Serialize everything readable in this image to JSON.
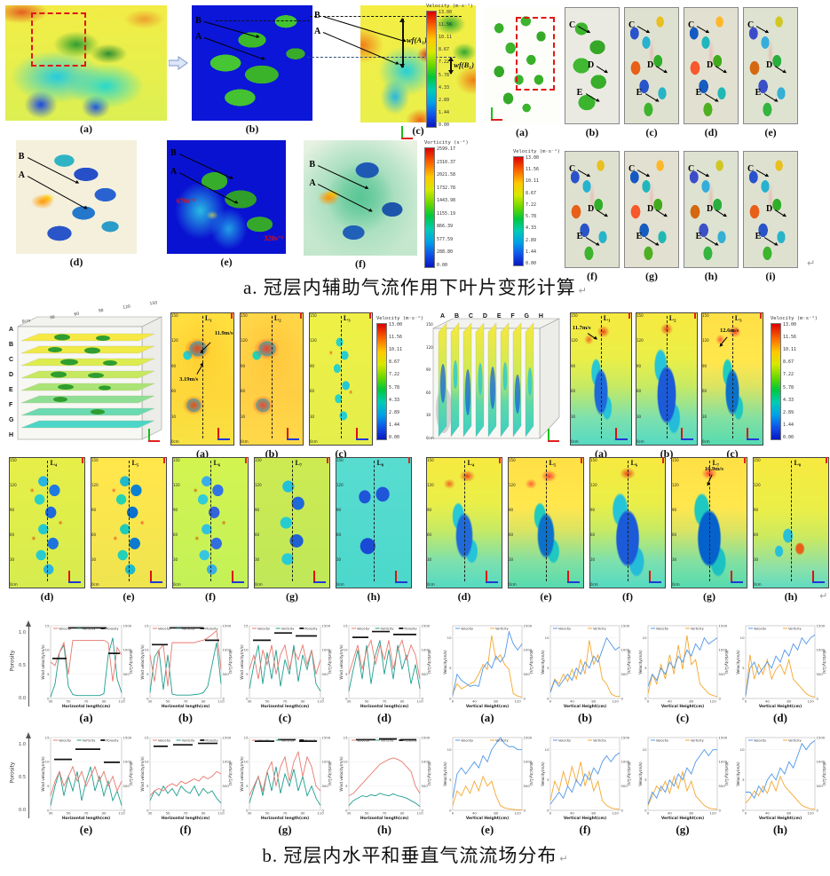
{
  "page": {
    "background": "#ffffff"
  },
  "return_mark": "↵",
  "colors": {
    "leaf_green": "#3cb42c",
    "roi_dashed": "#e01616",
    "velocity_line_left": "#e8796e",
    "vorticity_line_left": "#1f9e8e",
    "porosity_line": "#111111",
    "velocity_line_right": "#4f97e8",
    "vorticity_line_right": "#f5a72e"
  },
  "colorbars": {
    "velocity": {
      "title": "Velocity (m·s⁻¹)",
      "ticks": [
        "13.00",
        "11.56",
        "10.11",
        "8.67",
        "7.22",
        "5.78",
        "4.33",
        "2.89",
        "1.44",
        "0.00"
      ]
    },
    "vorticity": {
      "title": "Vorticity (s⁻¹)",
      "ticks": [
        "2599.17",
        "2310.37",
        "2021.58",
        "1732.78",
        "1443.98",
        "1155.19",
        "866.39",
        "577.59",
        "288.80",
        "0.00"
      ]
    }
  },
  "section_a": {
    "caption": "a. 冠层内辅助气流作用下叶片变形计算",
    "left": {
      "point_labels": [
        "B",
        "A"
      ],
      "panels": [
        {
          "label": "(a)"
        },
        {
          "label": "(b)"
        },
        {
          "label": "(c)"
        },
        {
          "label": "(d)"
        },
        {
          "label": "(e)"
        },
        {
          "label": "(f)"
        }
      ],
      "deform_annotations": [
        "wf(A₁)",
        "wf(B₁)"
      ],
      "vorticity_annotations": [
        "670s⁻¹",
        "320s⁻¹"
      ]
    },
    "right": {
      "point_labels": [
        "C",
        "D",
        "E"
      ],
      "row1": [
        {
          "label": "(a)"
        },
        {
          "label": "(b)"
        },
        {
          "label": "(c)"
        },
        {
          "label": "(d)"
        },
        {
          "label": "(e)"
        }
      ],
      "row2": [
        {
          "label": "(f)"
        },
        {
          "label": "(g)"
        },
        {
          "label": "(h)"
        },
        {
          "label": "(i)"
        }
      ]
    }
  },
  "section_b": {
    "yticks": [
      "150",
      "120",
      "90",
      "60",
      "30",
      "0cm"
    ],
    "left": {
      "box_letters": [
        "A",
        "B",
        "C",
        "D",
        "E",
        "F",
        "G",
        "H"
      ],
      "box_axis": [
        "0cm",
        "30",
        "60",
        "90",
        "120",
        "150"
      ],
      "panels": [
        {
          "label": "(a)",
          "slice": "L₁",
          "annotations": [
            "11.9m/s",
            "3.19m/s"
          ]
        },
        {
          "label": "(b)",
          "slice": "L₂"
        },
        {
          "label": "(c)",
          "slice": "L₃"
        },
        {
          "label": "(d)",
          "slice": "L₄"
        },
        {
          "label": "(e)",
          "slice": "L₅"
        },
        {
          "label": "(f)",
          "slice": "L₆"
        },
        {
          "label": "(g)",
          "slice": "L₇"
        },
        {
          "label": "(h)",
          "slice": "L₈"
        }
      ]
    },
    "right": {
      "box_letters": [
        "A",
        "B",
        "C",
        "D",
        "E",
        "F",
        "G",
        "H"
      ],
      "panels": [
        {
          "label": "(a)",
          "slice": "L₁",
          "annotations": [
            "11.7m/s"
          ]
        },
        {
          "label": "(b)",
          "slice": "L₂"
        },
        {
          "label": "(c)",
          "slice": "L₃",
          "annotations": [
            "12.6m/s"
          ]
        },
        {
          "label": "(d)",
          "slice": "L₄"
        },
        {
          "label": "(e)",
          "slice": "L₅"
        },
        {
          "label": "(f)",
          "slice": "L₆"
        },
        {
          "label": "(g)",
          "slice": "L₇",
          "annotations": [
            "10.9m/s"
          ]
        },
        {
          "label": "(h)",
          "slice": "L₈"
        }
      ]
    }
  },
  "section_c": {
    "caption": "b. 冠层内水平和垂直气流流场分布",
    "porosity_axis": {
      "label": "Porosity",
      "ticks": [
        "1.0",
        "0.5",
        "0.0"
      ]
    }
  },
  "chart_data": [
    {
      "type": "line",
      "group": "horizontal-flow",
      "xlabel": "Horizontal length(cm)",
      "ylabel_left": "Wind velocity(m/s)",
      "ylabel_right": "Vorticity(1/s)",
      "x": [
        30,
        35,
        40,
        45,
        50,
        55,
        60,
        65,
        70,
        75,
        80,
        85,
        90,
        95,
        100,
        105,
        110
      ],
      "xticks": [
        30,
        50,
        70,
        90,
        110
      ],
      "ylim_left": [
        0,
        15
      ],
      "yticks_left": [
        0,
        5,
        10,
        15
      ],
      "ylim_right": [
        0,
        1500
      ],
      "yticks_right": [
        0,
        500,
        1000,
        1500
      ],
      "legend": [
        "Velocity",
        "Vorticity",
        "Porosity"
      ],
      "series_keys": [
        "velocity",
        "vorticity",
        "porosity"
      ],
      "colors": {
        "velocity": "#e8796e",
        "vorticity": "#1f9e8e",
        "porosity": "#111111"
      },
      "legend_position": "top",
      "grid": true,
      "charts": [
        {
          "label": "(a)",
          "velocity": [
            7.5,
            6.8,
            9.5,
            11.5,
            5,
            12,
            12,
            12,
            12,
            12,
            12,
            12,
            12,
            11.5,
            3.5,
            10.5,
            9
          ],
          "vorticity": [
            30,
            300,
            950,
            1100,
            250,
            80,
            60,
            60,
            60,
            60,
            60,
            60,
            100,
            900,
            1250,
            400,
            120
          ],
          "porosity": [
            [
              32,
              48,
              0.55
            ],
            [
              50,
              93,
              0.97
            ],
            [
              95,
              108,
              0.62
            ]
          ]
        },
        {
          "label": "(b)",
          "velocity": [
            9,
            3.5,
            10,
            11,
            2.5,
            11.5,
            11.5,
            11.5,
            11.5,
            11.5,
            11.5,
            11.8,
            12,
            12.5,
            13.2,
            14,
            6
          ],
          "vorticity": [
            120,
            850,
            1000,
            180,
            900,
            90,
            70,
            70,
            70,
            70,
            80,
            90,
            120,
            250,
            700,
            1150,
            300
          ],
          "porosity": [
            [
              32,
              50,
              0.74
            ],
            [
              52,
              90,
              0.97
            ],
            [
              92,
              108,
              0.8
            ]
          ]
        },
        {
          "label": "(c)",
          "velocity": [
            6,
            9,
            4,
            10,
            7,
            11,
            5,
            9,
            11,
            6,
            10,
            8,
            11,
            7,
            10,
            5,
            8
          ],
          "vorticity": [
            200,
            700,
            1100,
            300,
            950,
            400,
            1000,
            250,
            800,
            500,
            1100,
            350,
            900,
            600,
            1000,
            300,
            150
          ],
          "porosity": [
            [
              34,
              54,
              0.8
            ],
            [
              58,
              78,
              0.9
            ],
            [
              82,
              106,
              0.86
            ]
          ]
        },
        {
          "label": "(d)",
          "velocity": [
            5,
            8,
            11,
            6,
            10,
            12,
            7,
            11,
            8,
            12,
            6,
            10,
            12,
            8,
            11,
            9,
            4
          ],
          "vorticity": [
            150,
            600,
            1000,
            400,
            1100,
            300,
            900,
            1200,
            500,
            1000,
            400,
            1100,
            600,
            900,
            300,
            700,
            200
          ],
          "porosity": [
            [
              34,
              52,
              0.84
            ],
            [
              56,
              76,
              0.92
            ],
            [
              80,
              106,
              0.88
            ]
          ]
        },
        {
          "label": "(e)",
          "velocity": [
            3,
            6,
            8,
            5,
            7,
            9,
            6,
            8,
            5,
            7,
            9,
            6,
            8,
            5,
            7,
            4,
            6
          ],
          "vorticity": [
            100,
            500,
            800,
            300,
            700,
            400,
            800,
            200,
            600,
            900,
            400,
            700,
            300,
            600,
            200,
            400,
            100
          ],
          "porosity": [
            [
              34,
              54,
              0.7
            ],
            [
              58,
              86,
              0.84
            ],
            [
              90,
              108,
              0.66
            ]
          ]
        },
        {
          "label": "(f)",
          "velocity": [
            3,
            4,
            4.5,
            4,
            5,
            5.5,
            5,
            6,
            5.5,
            6,
            6.5,
            6,
            7,
            6.5,
            7,
            8,
            7.5
          ],
          "vorticity": [
            200,
            400,
            300,
            500,
            350,
            450,
            300,
            500,
            400,
            350,
            500,
            300,
            450,
            350,
            400,
            250,
            150
          ],
          "porosity": [
            [
              34,
              50,
              0.88
            ],
            [
              56,
              78,
              0.9
            ],
            [
              84,
              106,
              0.92
            ]
          ]
        },
        {
          "label": "(g)",
          "velocity": [
            3,
            5,
            7,
            4,
            8,
            10,
            5,
            9,
            11,
            6,
            10,
            12,
            7,
            11,
            9,
            5,
            4
          ],
          "vorticity": [
            150,
            450,
            700,
            300,
            800,
            400,
            900,
            350,
            750,
            500,
            850,
            400,
            700,
            300,
            500,
            250,
            100
          ],
          "porosity": [
            [
              36,
              58,
              0.95
            ],
            [
              62,
              82,
              0.97
            ],
            [
              86,
              106,
              0.95
            ]
          ]
        },
        {
          "label": "(h)",
          "velocity": [
            3,
            3.5,
            4.5,
            5.5,
            6.5,
            7.5,
            8.5,
            9.5,
            10,
            10.5,
            10.8,
            10.5,
            10,
            9,
            8,
            5,
            3.5
          ],
          "vorticity": [
            100,
            200,
            250,
            300,
            280,
            320,
            300,
            350,
            320,
            300,
            340,
            300,
            280,
            250,
            200,
            150,
            80
          ],
          "porosity": [
            [
              38,
              60,
              0.97
            ],
            [
              64,
              84,
              0.98
            ],
            [
              88,
              106,
              0.97
            ]
          ]
        }
      ]
    },
    {
      "type": "line",
      "group": "vertical-flow",
      "xlabel": "Vertical Height(cm)",
      "ylabel_left": "Velocity(m/s)",
      "ylabel_right": "Vorticity(1/s)",
      "x": [
        0,
        8,
        16,
        24,
        32,
        40,
        48,
        56,
        64,
        72,
        80,
        88,
        96,
        104,
        112,
        120,
        128
      ],
      "xticks": [
        0,
        40,
        80,
        120
      ],
      "ylim_left": [
        0,
        12
      ],
      "yticks_left": [
        0,
        5,
        10
      ],
      "ylim_right": [
        0,
        1500
      ],
      "yticks_right": [
        0,
        500,
        1000,
        1500
      ],
      "legend": [
        "Velocity",
        "Vorticity"
      ],
      "series_keys": [
        "velocity",
        "vorticity"
      ],
      "colors": {
        "velocity": "#4f97e8",
        "vorticity": "#f5a72e"
      },
      "legend_position": "top",
      "grid": true,
      "charts": [
        {
          "label": "(a)",
          "velocity": [
            0.5,
            4,
            3,
            2.5,
            2,
            2.2,
            2,
            5,
            6,
            5,
            7,
            6,
            7,
            11,
            9,
            8,
            9
          ],
          "vorticity": [
            100,
            300,
            200,
            250,
            300,
            350,
            500,
            700,
            600,
            1300,
            800,
            900,
            700,
            600,
            100,
            50,
            30
          ]
        },
        {
          "label": "(b)",
          "velocity": [
            1,
            3,
            2,
            3,
            4,
            3,
            5,
            4,
            6,
            5,
            7,
            6,
            8,
            10,
            9,
            8,
            8.5
          ],
          "vorticity": [
            150,
            400,
            300,
            500,
            350,
            600,
            400,
            800,
            500,
            1200,
            700,
            900,
            400,
            300,
            100,
            50,
            40
          ]
        },
        {
          "label": "(c)",
          "velocity": [
            2,
            4,
            3,
            5,
            4,
            6,
            5,
            7,
            6,
            8,
            7,
            9,
            8,
            10,
            9,
            9.5,
            10
          ],
          "vorticity": [
            100,
            500,
            300,
            700,
            400,
            900,
            500,
            1100,
            600,
            1300,
            700,
            800,
            300,
            200,
            100,
            60,
            40
          ]
        },
        {
          "label": "(d)",
          "velocity": [
            0.5,
            5,
            6,
            4,
            5,
            6,
            5,
            7,
            6,
            8,
            7,
            9,
            8,
            10,
            9,
            10,
            10.5
          ],
          "vorticity": [
            50,
            900,
            400,
            700,
            500,
            800,
            400,
            600,
            700,
            500,
            800,
            400,
            300,
            200,
            100,
            50,
            30
          ]
        },
        {
          "label": "(e)",
          "velocity": [
            2,
            6,
            7,
            6,
            7,
            8,
            7,
            9,
            8,
            10,
            11,
            12,
            11,
            10.5,
            10.5,
            10,
            10
          ],
          "vorticity": [
            100,
            400,
            300,
            500,
            350,
            600,
            400,
            700,
            500,
            600,
            300,
            100,
            50,
            30,
            20,
            10,
            10
          ]
        },
        {
          "label": "(f)",
          "velocity": [
            1,
            2,
            3,
            2,
            4,
            3,
            5,
            4,
            6,
            5,
            7,
            6,
            8,
            9,
            8,
            9,
            9.5
          ],
          "vorticity": [
            200,
            600,
            400,
            800,
            500,
            900,
            600,
            1000,
            500,
            800,
            400,
            600,
            200,
            100,
            50,
            30,
            20
          ]
        },
        {
          "label": "(g)",
          "velocity": [
            1,
            3,
            2,
            4,
            3,
            5,
            4,
            6,
            5,
            7,
            6,
            8,
            9,
            10,
            9,
            10,
            10
          ],
          "vorticity": [
            100,
            300,
            500,
            400,
            600,
            350,
            700,
            450,
            800,
            400,
            600,
            300,
            200,
            100,
            50,
            30,
            20
          ]
        },
        {
          "label": "(h)",
          "velocity": [
            3,
            3,
            2,
            4,
            3,
            5,
            6,
            5,
            7,
            6,
            8,
            7,
            9,
            11,
            10,
            11,
            11.5
          ],
          "vorticity": [
            150,
            250,
            400,
            300,
            500,
            350,
            600,
            400,
            700,
            500,
            400,
            300,
            200,
            100,
            60,
            30,
            20
          ]
        }
      ]
    }
  ]
}
